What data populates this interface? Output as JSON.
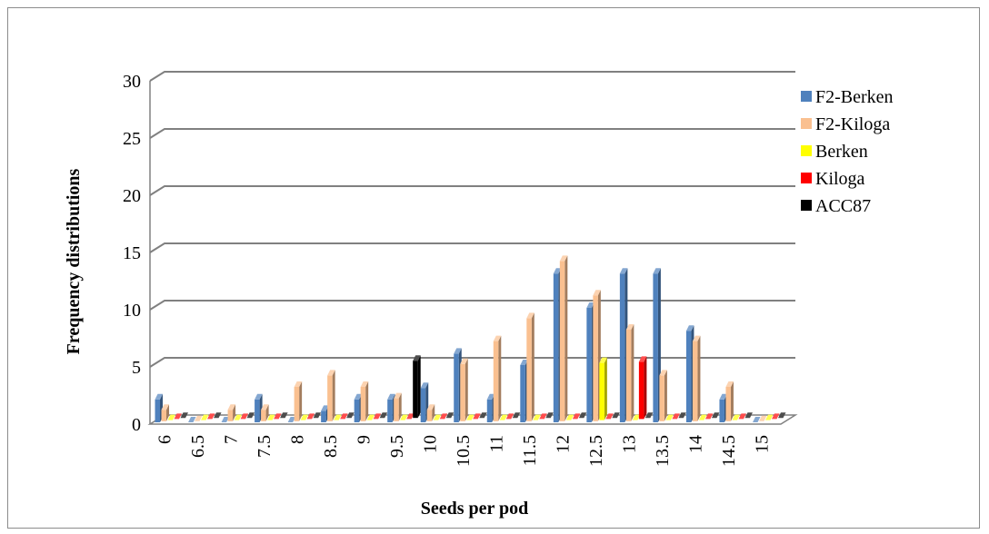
{
  "chart_data": {
    "type": "bar",
    "title": "",
    "xlabel": "Seeds per pod",
    "ylabel": "Frequency distributions",
    "ylim": [
      0,
      30
    ],
    "yticks": [
      0,
      5,
      10,
      15,
      20,
      25,
      30
    ],
    "grid": true,
    "legend_position": "right",
    "categories": [
      "6",
      "6.5",
      "7",
      "7.5",
      "8",
      "8.5",
      "9",
      "9.5",
      "10",
      "10.5",
      "11",
      "11.5",
      "12",
      "12.5",
      "13",
      "13.5",
      "14",
      "14.5",
      "15"
    ],
    "series": [
      {
        "name": "F2-Berken",
        "color": "#4f81bd",
        "values": [
          2,
          0,
          0,
          2,
          0,
          1,
          2,
          2,
          3,
          6,
          2,
          5,
          13,
          10,
          13,
          13,
          8,
          2,
          0
        ]
      },
      {
        "name": "F2-Kiloga",
        "color": "#fac090",
        "values": [
          1,
          0,
          1,
          1,
          3,
          4,
          3,
          2,
          1,
          5,
          7,
          9,
          14,
          11,
          8,
          4,
          7,
          3,
          0
        ]
      },
      {
        "name": "Berken",
        "color": "#ffff00",
        "values": [
          0,
          0,
          0,
          0,
          0,
          0,
          0,
          0,
          0,
          0,
          0,
          0,
          0,
          5,
          0,
          0,
          0,
          0,
          0
        ]
      },
      {
        "name": "Kiloga",
        "color": "#ff0000",
        "values": [
          0,
          0,
          0,
          0,
          0,
          0,
          0,
          0,
          0,
          0,
          0,
          0,
          0,
          0,
          5,
          0,
          0,
          0,
          0
        ]
      },
      {
        "name": "ACC87",
        "color": "#000000",
        "values": [
          0,
          0,
          0,
          0,
          0,
          0,
          0,
          5,
          0,
          0,
          0,
          0,
          0,
          0,
          0,
          0,
          0,
          0,
          0
        ]
      }
    ]
  }
}
